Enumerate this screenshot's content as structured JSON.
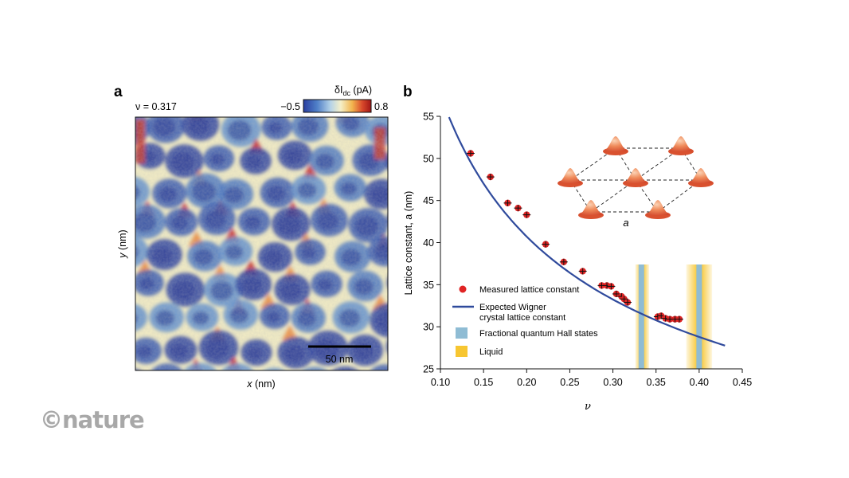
{
  "panel_a": {
    "label": "a",
    "nu_label": "ν = 0.317",
    "colorbar_title": "δI",
    "colorbar_title_sub": "dc",
    "colorbar_title_unit": " (pA)",
    "colorbar_min": "−0.5",
    "colorbar_max": "0.8",
    "scalebar_label": "50 nm",
    "xlabel_var": "x",
    "xlabel_unit": " (nm)",
    "ylabel_var": "y",
    "ylabel_unit": " (nm)",
    "colors": {
      "low": "#2a3fa0",
      "mid": "#f5efc8",
      "high": "#b01c1c"
    }
  },
  "panel_b": {
    "label": "b",
    "inset_label": "a",
    "legend": [
      {
        "key": "measured",
        "label": "Measured lattice constant",
        "color": "#e02424",
        "symbol": "dot"
      },
      {
        "key": "expected",
        "label": "Expected Wigner",
        "label2": "crystal lattice constant",
        "color": "#2f4a9c",
        "symbol": "line"
      },
      {
        "key": "fqh",
        "label": "Fractional quantum Hall states",
        "color": "#8fbcd4",
        "symbol": "box"
      },
      {
        "key": "liquid",
        "label": "Liquid",
        "color": "#f7c631",
        "symbol": "box"
      }
    ]
  },
  "watermark": "©nature",
  "chart_data": {
    "type": "scatter",
    "xlabel": "ν",
    "ylabel": "Lattice constant, a (nm)",
    "xlim": [
      0.1,
      0.45
    ],
    "ylim": [
      25,
      55
    ],
    "xticks": [
      "0.10",
      "0.15",
      "0.20",
      "0.25",
      "0.30",
      "0.35",
      "0.40",
      "0.45"
    ],
    "yticks": [
      "25",
      "30",
      "35",
      "40",
      "45",
      "50",
      "55"
    ],
    "series": [
      {
        "name": "Measured lattice constant",
        "type": "scatter",
        "x": [
          0.135,
          0.158,
          0.178,
          0.19,
          0.2,
          0.222,
          0.243,
          0.265,
          0.287,
          0.293,
          0.298,
          0.304,
          0.31,
          0.313,
          0.317,
          0.352,
          0.356,
          0.361,
          0.366,
          0.372,
          0.377
        ],
        "y": [
          50.6,
          47.8,
          44.7,
          44.1,
          43.3,
          39.8,
          37.7,
          36.6,
          34.9,
          34.9,
          34.8,
          33.9,
          33.6,
          33.3,
          32.9,
          31.2,
          31.3,
          31.0,
          30.9,
          30.9,
          30.9
        ]
      },
      {
        "name": "Expected Wigner crystal lattice constant",
        "type": "line",
        "x": [
          0.11,
          0.15,
          0.2,
          0.25,
          0.3,
          0.35,
          0.4,
          0.43
        ],
        "y": [
          54.9,
          47.1,
          40.8,
          36.5,
          33.3,
          30.8,
          28.8,
          27.8
        ]
      }
    ],
    "bands": [
      {
        "name": "Fractional quantum Hall states",
        "x": 0.333
      },
      {
        "name": "Fractional quantum Hall states",
        "x": 0.4
      },
      {
        "name": "Liquid",
        "x_range": [
          0.326,
          0.342
        ]
      },
      {
        "name": "Liquid",
        "x_range": [
          0.385,
          0.415
        ]
      }
    ],
    "band_ylim": [
      25,
      37.5
    ]
  }
}
